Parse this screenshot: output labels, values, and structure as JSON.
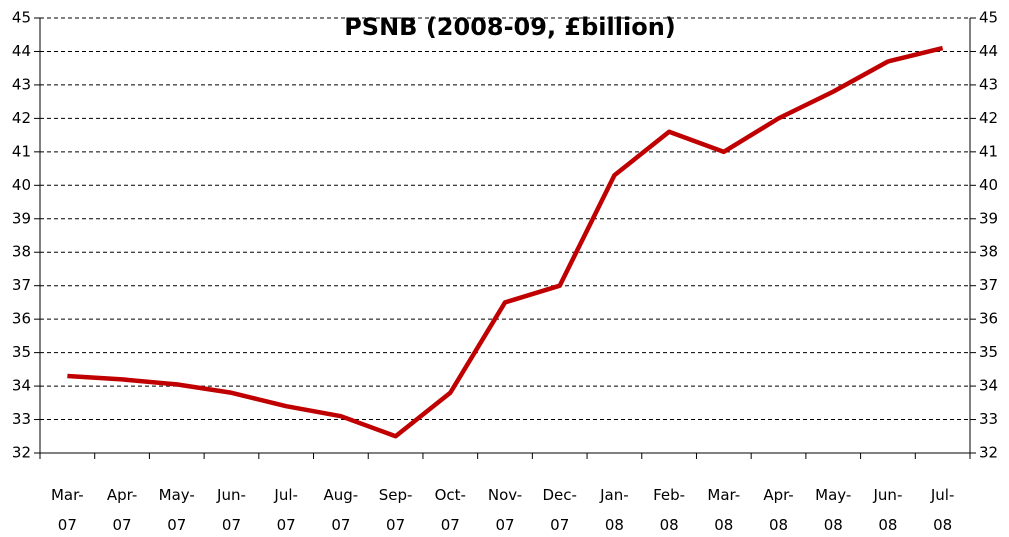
{
  "chart_data": {
    "type": "line",
    "title": "PSNB (2008-09, £billion)",
    "categories": [
      "Mar-07",
      "Apr-07",
      "May-07",
      "Jun-07",
      "Jul-07",
      "Aug-07",
      "Sep-07",
      "Oct-07",
      "Nov-07",
      "Dec-07",
      "Jan-08",
      "Feb-08",
      "Mar-08",
      "Apr-08",
      "May-08",
      "Jun-08",
      "Jul-08"
    ],
    "series": [
      {
        "name": "PSNB",
        "color": "#c00000",
        "values": [
          34.3,
          34.2,
          34.05,
          33.8,
          33.4,
          33.1,
          32.5,
          33.8,
          36.5,
          37.0,
          40.3,
          41.6,
          41.0,
          42.0,
          42.8,
          43.7,
          44.1
        ]
      }
    ],
    "ylim": [
      32,
      45
    ],
    "yticks": [
      32,
      33,
      34,
      35,
      36,
      37,
      38,
      39,
      40,
      41,
      42,
      43,
      44,
      45
    ],
    "y2lim": [
      32,
      45
    ],
    "y2ticks": [
      32,
      33,
      34,
      35,
      36,
      37,
      38,
      39,
      40,
      41,
      42,
      43,
      44,
      45
    ],
    "grid": true
  }
}
